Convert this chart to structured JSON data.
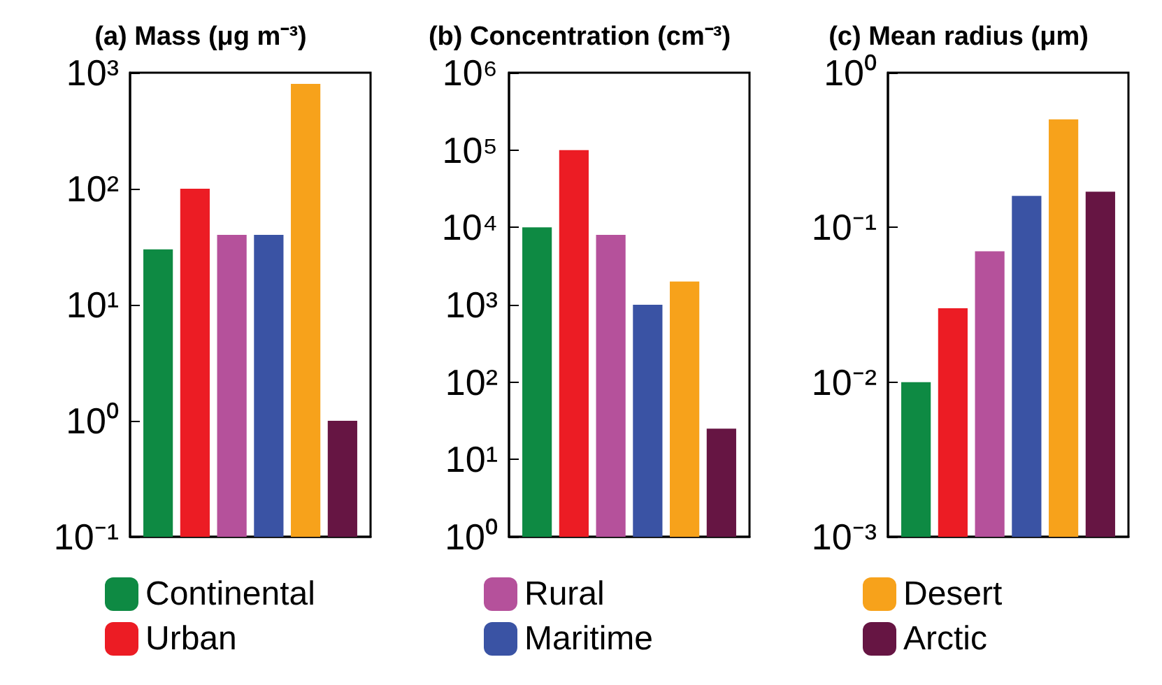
{
  "chart_data": [
    {
      "type": "bar",
      "title": "(a) Mass (μg m⁻³)",
      "categories": [
        null
      ],
      "log": "y",
      "ylim": [
        0.1,
        1000
      ],
      "yticks": [
        {
          "value": 0.1,
          "label": "10⁻¹"
        },
        {
          "value": 1,
          "label": "10⁰"
        },
        {
          "value": 10,
          "label": "10¹"
        },
        {
          "value": 100,
          "label": "10²"
        },
        {
          "value": 1000,
          "label": "10³"
        }
      ],
      "grid": false,
      "legend": "bottom",
      "series": [
        {
          "name": "Continental",
          "color": "#0e8a43",
          "values": [
            30
          ]
        },
        {
          "name": "Urban",
          "color": "#ec1c24",
          "values": [
            100
          ]
        },
        {
          "color": "#b5519b",
          "values": [
            40
          ]
        },
        {
          "color": "#3a53a4",
          "values": [
            40
          ]
        },
        {
          "color": "#f7a21b",
          "values": [
            800
          ]
        },
        {
          "color": "#661543",
          "values": [
            1
          ]
        }
      ]
    },
    {
      "type": "bar",
      "title": "(b) Concentration (cm⁻³)",
      "categories": [
        null
      ],
      "log": "y",
      "ylim": [
        1,
        1000000
      ],
      "yticks": [
        {
          "value": 1,
          "label": "10⁰"
        },
        {
          "value": 10,
          "label": "10¹"
        },
        {
          "value": 100,
          "label": "10²"
        },
        {
          "value": 1000,
          "label": "10³"
        },
        {
          "value": 10000,
          "label": "10⁴"
        },
        {
          "value": 100000,
          "label": "10⁵"
        },
        {
          "value": 1000000,
          "label": "10⁶"
        }
      ],
      "grid": false,
      "legend": "bottom",
      "series": [
        {
          "color": "#0e8a43",
          "values": [
            10000
          ]
        },
        {
          "color": "#ec1c24",
          "values": [
            100000
          ]
        },
        {
          "name": "Rural",
          "color": "#b5519b",
          "values": [
            8000
          ]
        },
        {
          "name": "Maritime",
          "color": "#3a53a4",
          "values": [
            1000
          ]
        },
        {
          "color": "#f7a21b",
          "values": [
            2000
          ]
        },
        {
          "color": "#661543",
          "values": [
            25
          ]
        }
      ]
    },
    {
      "type": "bar",
      "title": "(c) Mean radius (μm)",
      "categories": [
        null
      ],
      "log": "y",
      "ylim": [
        0.001,
        1
      ],
      "yticks": [
        {
          "value": 0.001,
          "label": "10⁻³"
        },
        {
          "value": 0.01,
          "label": "10⁻²"
        },
        {
          "value": 0.1,
          "label": "10⁻¹"
        },
        {
          "value": 1,
          "label": "10⁰"
        }
      ],
      "grid": false,
      "legend": "bottom",
      "series": [
        {
          "color": "#0e8a43",
          "values": [
            0.01
          ]
        },
        {
          "color": "#ec1c24",
          "values": [
            0.03
          ]
        },
        {
          "color": "#b5519b",
          "values": [
            0.07
          ]
        },
        {
          "color": "#3a53a4",
          "values": [
            0.16
          ]
        },
        {
          "name": "Desert",
          "color": "#f7a21b",
          "values": [
            0.5
          ]
        },
        {
          "name": "Arctic",
          "color": "#661543",
          "values": [
            0.17
          ]
        }
      ]
    }
  ]
}
